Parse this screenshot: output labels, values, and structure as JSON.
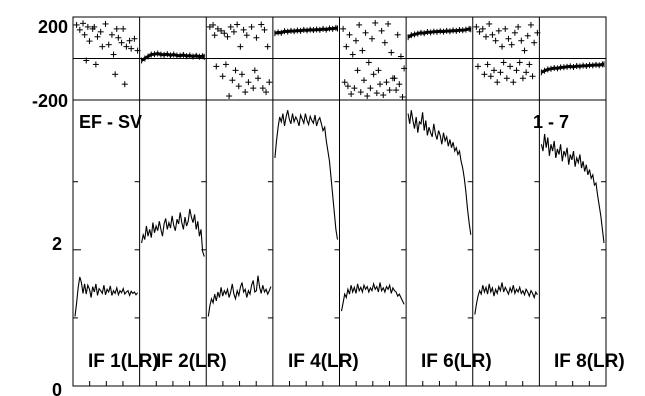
{
  "chart_data": {
    "type": "line",
    "title": "EF - SV",
    "range_label": "1 - 7",
    "phase_axis": {
      "tick_labels": [
        "200",
        "-200"
      ],
      "ylim": [
        -200,
        200
      ]
    },
    "amp_axis": {
      "tick_labels": [
        "2",
        "0"
      ],
      "ylim": [
        0,
        4.2
      ]
    },
    "x_axis_range": [
      1,
      40
    ],
    "panels": [
      {
        "label": "IF 1(LR)",
        "phase_type": "scatter",
        "phase": [
          [
            2,
            170
          ],
          [
            4,
            145
          ],
          [
            6,
            178
          ],
          [
            7,
            120
          ],
          [
            9,
            160
          ],
          [
            10,
            88
          ],
          [
            12,
            150
          ],
          [
            13,
            160
          ],
          [
            15,
            110
          ],
          [
            17,
            135
          ],
          [
            18,
            60
          ],
          [
            20,
            175
          ],
          [
            22,
            70
          ],
          [
            24,
            120
          ],
          [
            25,
            20
          ],
          [
            27,
            150
          ],
          [
            28,
            105
          ],
          [
            30,
            80
          ],
          [
            31,
            150
          ],
          [
            33,
            60
          ],
          [
            35,
            90
          ],
          [
            36,
            50
          ],
          [
            38,
            100
          ],
          [
            40,
            40
          ],
          [
            14,
            -30
          ],
          [
            26,
            -80
          ],
          [
            32,
            -130
          ],
          [
            8,
            -10
          ]
        ],
        "amplitude": [
          1.02,
          1.22,
          1.45,
          1.6,
          1.52,
          1.36,
          1.5,
          1.35,
          1.48,
          1.42,
          1.3,
          1.46,
          1.38,
          1.5,
          1.33,
          1.43,
          1.4,
          1.36,
          1.48,
          1.34,
          1.42,
          1.38,
          1.47,
          1.33,
          1.4,
          1.36,
          1.44,
          1.34,
          1.4,
          1.37,
          1.43,
          1.35,
          1.38,
          1.4,
          1.33,
          1.39,
          1.36,
          1.38,
          1.34,
          1.37
        ]
      },
      {
        "label": "IF 2(LR)",
        "phase_type": "line",
        "phase": [
          [
            1,
            -10
          ],
          [
            3,
            0
          ],
          [
            5,
            10
          ],
          [
            7,
            20
          ],
          [
            9,
            22
          ],
          [
            11,
            25
          ],
          [
            13,
            20
          ],
          [
            15,
            18
          ],
          [
            17,
            22
          ],
          [
            19,
            16
          ],
          [
            21,
            20
          ],
          [
            23,
            15
          ],
          [
            25,
            14
          ],
          [
            27,
            18
          ],
          [
            29,
            12
          ],
          [
            31,
            15
          ],
          [
            33,
            10
          ],
          [
            35,
            14
          ],
          [
            37,
            9
          ],
          [
            39,
            12
          ],
          [
            40,
            8
          ]
        ],
        "amplitude": [
          2.1,
          2.22,
          2.15,
          2.35,
          2.2,
          2.3,
          2.18,
          2.4,
          2.25,
          2.35,
          2.28,
          2.42,
          2.3,
          2.2,
          2.38,
          2.46,
          2.3,
          2.4,
          2.32,
          2.5,
          2.36,
          2.28,
          2.45,
          2.38,
          2.55,
          2.4,
          2.3,
          2.48,
          2.35,
          2.42,
          2.6,
          2.48,
          2.4,
          2.52,
          2.3,
          2.42,
          2.2,
          2.3,
          1.98,
          1.9
        ]
      },
      {
        "label": "",
        "phase_type": "scatter",
        "phase": [
          [
            2,
            160
          ],
          [
            4,
            170
          ],
          [
            5,
            118
          ],
          [
            7,
            150
          ],
          [
            9,
            140
          ],
          [
            11,
            128
          ],
          [
            13,
            110
          ],
          [
            15,
            160
          ],
          [
            17,
            135
          ],
          [
            19,
            172
          ],
          [
            21,
            60
          ],
          [
            23,
            145
          ],
          [
            25,
            118
          ],
          [
            28,
            160
          ],
          [
            31,
            105
          ],
          [
            34,
            172
          ],
          [
            36,
            145
          ],
          [
            38,
            60
          ],
          [
            6,
            -40
          ],
          [
            10,
            -90
          ],
          [
            12,
            -30
          ],
          [
            16,
            -110
          ],
          [
            18,
            -60
          ],
          [
            20,
            -140
          ],
          [
            22,
            -80
          ],
          [
            24,
            -170
          ],
          [
            26,
            -120
          ],
          [
            29,
            -150
          ],
          [
            30,
            -60
          ],
          [
            32,
            -100
          ],
          [
            35,
            -150
          ],
          [
            37,
            -170
          ],
          [
            39,
            -120
          ],
          [
            14,
            -190
          ]
        ],
        "amplitude": [
          1.02,
          1.18,
          1.28,
          1.22,
          1.35,
          1.25,
          1.38,
          1.3,
          1.45,
          1.32,
          1.4,
          1.35,
          1.42,
          1.3,
          1.38,
          1.5,
          1.35,
          1.28,
          1.4,
          1.33,
          1.45,
          1.52,
          1.38,
          1.42,
          1.3,
          1.4,
          1.35,
          1.48,
          1.55,
          1.38,
          1.4,
          1.62,
          1.45,
          1.36,
          1.48,
          1.38,
          1.42,
          1.35,
          1.4,
          1.46
        ]
      },
      {
        "label": "IF 4(LR)",
        "phase_type": "line",
        "phase": [
          [
            1,
            128
          ],
          [
            3,
            132
          ],
          [
            5,
            130
          ],
          [
            7,
            138
          ],
          [
            9,
            136
          ],
          [
            11,
            140
          ],
          [
            13,
            138
          ],
          [
            15,
            142
          ],
          [
            17,
            140
          ],
          [
            19,
            145
          ],
          [
            21,
            142
          ],
          [
            23,
            146
          ],
          [
            25,
            144
          ],
          [
            27,
            147
          ],
          [
            29,
            145
          ],
          [
            31,
            150
          ],
          [
            33,
            146
          ],
          [
            35,
            152
          ],
          [
            37,
            150
          ],
          [
            39,
            155
          ],
          [
            40,
            152
          ]
        ],
        "amplitude": [
          3.35,
          3.6,
          3.8,
          3.95,
          3.88,
          4.0,
          3.82,
          3.95,
          4.05,
          3.92,
          3.85,
          4.0,
          3.88,
          3.95,
          3.9,
          3.82,
          3.98,
          3.92,
          3.86,
          4.0,
          3.9,
          3.84,
          3.96,
          3.9,
          3.86,
          3.98,
          3.82,
          3.9,
          3.94,
          3.85,
          3.75,
          3.8,
          3.6,
          3.45,
          3.3,
          3.05,
          2.8,
          2.55,
          2.3,
          2.15
        ]
      },
      {
        "label": "",
        "phase_type": "scatter",
        "phase": [
          [
            2,
            150
          ],
          [
            4,
            60
          ],
          [
            6,
            120
          ],
          [
            8,
            20
          ],
          [
            10,
            90
          ],
          [
            12,
            170
          ],
          [
            14,
            40
          ],
          [
            16,
            130
          ],
          [
            18,
            -20
          ],
          [
            20,
            100
          ],
          [
            22,
            180
          ],
          [
            24,
            -60
          ],
          [
            26,
            140
          ],
          [
            28,
            80
          ],
          [
            30,
            175
          ],
          [
            32,
            30
          ],
          [
            34,
            -100
          ],
          [
            36,
            120
          ],
          [
            38,
            10
          ],
          [
            40,
            -50
          ],
          [
            3,
            -120
          ],
          [
            7,
            -180
          ],
          [
            9,
            -150
          ],
          [
            11,
            -60
          ],
          [
            13,
            -170
          ],
          [
            15,
            -110
          ],
          [
            17,
            -190
          ],
          [
            19,
            -150
          ],
          [
            21,
            -80
          ],
          [
            23,
            -175
          ],
          [
            25,
            -130
          ],
          [
            27,
            -185
          ],
          [
            29,
            -120
          ],
          [
            31,
            -160
          ],
          [
            33,
            -100
          ],
          [
            35,
            -160
          ],
          [
            37,
            -130
          ],
          [
            39,
            -195
          ],
          [
            5,
            -140
          ]
        ],
        "amplitude": [
          1.1,
          1.22,
          1.35,
          1.3,
          1.42,
          1.35,
          1.48,
          1.38,
          1.45,
          1.36,
          1.5,
          1.4,
          1.45,
          1.38,
          1.48,
          1.42,
          1.46,
          1.38,
          1.44,
          1.4,
          1.5,
          1.42,
          1.46,
          1.38,
          1.52,
          1.4,
          1.44,
          1.38,
          1.46,
          1.42,
          1.48,
          1.36,
          1.44,
          1.4,
          1.38,
          1.32,
          1.35,
          1.3,
          1.25,
          1.2
        ]
      },
      {
        "label": "IF 6(LR)",
        "phase_type": "line",
        "phase": [
          [
            1,
            108
          ],
          [
            3,
            118
          ],
          [
            5,
            122
          ],
          [
            7,
            126
          ],
          [
            9,
            130
          ],
          [
            11,
            128
          ],
          [
            13,
            134
          ],
          [
            15,
            132
          ],
          [
            17,
            136
          ],
          [
            19,
            135
          ],
          [
            21,
            138
          ],
          [
            23,
            136
          ],
          [
            25,
            140
          ],
          [
            27,
            138
          ],
          [
            29,
            142
          ],
          [
            31,
            140
          ],
          [
            33,
            144
          ],
          [
            35,
            143
          ],
          [
            37,
            146
          ],
          [
            39,
            150
          ],
          [
            40,
            148
          ]
        ],
        "amplitude": [
          4.0,
          3.85,
          4.05,
          3.9,
          3.78,
          3.95,
          3.72,
          3.88,
          3.85,
          4.02,
          3.75,
          3.9,
          3.68,
          3.8,
          3.72,
          3.66,
          3.85,
          3.7,
          3.62,
          3.75,
          3.68,
          3.55,
          3.72,
          3.6,
          3.66,
          3.52,
          3.62,
          3.5,
          3.58,
          3.45,
          3.5,
          3.4,
          3.45,
          3.3,
          3.2,
          3.05,
          2.85,
          2.6,
          2.4,
          2.22
        ]
      },
      {
        "label": "",
        "phase_type": "scatter",
        "phase": [
          [
            2,
            160
          ],
          [
            4,
            135
          ],
          [
            6,
            150
          ],
          [
            8,
            110
          ],
          [
            10,
            175
          ],
          [
            12,
            120
          ],
          [
            14,
            90
          ],
          [
            16,
            140
          ],
          [
            18,
            60
          ],
          [
            20,
            150
          ],
          [
            22,
            100
          ],
          [
            24,
            70
          ],
          [
            26,
            130
          ],
          [
            28,
            160
          ],
          [
            30,
            90
          ],
          [
            32,
            40
          ],
          [
            34,
            115
          ],
          [
            36,
            170
          ],
          [
            38,
            80
          ],
          [
            40,
            130
          ],
          [
            3,
            -40
          ],
          [
            7,
            -80
          ],
          [
            9,
            -30
          ],
          [
            11,
            -90
          ],
          [
            13,
            -60
          ],
          [
            15,
            -120
          ],
          [
            17,
            -70
          ],
          [
            19,
            -20
          ],
          [
            21,
            -100
          ],
          [
            23,
            -40
          ],
          [
            25,
            -120
          ],
          [
            27,
            -60
          ],
          [
            29,
            -20
          ],
          [
            31,
            -100
          ],
          [
            33,
            -70
          ],
          [
            35,
            -30
          ],
          [
            37,
            -90
          ]
        ],
        "amplitude": [
          1.05,
          1.2,
          1.32,
          1.4,
          1.35,
          1.48,
          1.38,
          1.45,
          1.35,
          1.5,
          1.38,
          1.44,
          1.32,
          1.42,
          1.36,
          1.46,
          1.4,
          1.52,
          1.38,
          1.45,
          1.4,
          1.35,
          1.44,
          1.38,
          1.48,
          1.36,
          1.42,
          1.38,
          1.45,
          1.36,
          1.4,
          1.34,
          1.42,
          1.38,
          1.32,
          1.4,
          1.36,
          1.3,
          1.38,
          1.34
        ]
      },
      {
        "label": "IF 8(LR)",
        "phase_type": "line",
        "phase": [
          [
            1,
            -70
          ],
          [
            3,
            -62
          ],
          [
            5,
            -55
          ],
          [
            7,
            -52
          ],
          [
            9,
            -48
          ],
          [
            11,
            -50
          ],
          [
            13,
            -45
          ],
          [
            15,
            -44
          ],
          [
            17,
            -42
          ],
          [
            19,
            -40
          ],
          [
            21,
            -43
          ],
          [
            23,
            -38
          ],
          [
            25,
            -40
          ],
          [
            27,
            -36
          ],
          [
            29,
            -38
          ],
          [
            31,
            -34
          ],
          [
            33,
            -35
          ],
          [
            35,
            -32
          ],
          [
            37,
            -34
          ],
          [
            39,
            -30
          ],
          [
            40,
            -29
          ]
        ],
        "amplitude": [
          3.55,
          3.45,
          3.7,
          3.5,
          3.65,
          3.38,
          3.55,
          3.45,
          3.6,
          3.35,
          3.48,
          3.4,
          3.55,
          3.3,
          3.45,
          3.38,
          3.5,
          3.25,
          3.4,
          3.32,
          3.45,
          3.22,
          3.35,
          3.28,
          3.4,
          3.2,
          3.3,
          3.15,
          3.25,
          3.1,
          3.18,
          3.05,
          3.1,
          2.95,
          2.98,
          2.8,
          2.65,
          2.5,
          2.3,
          2.1
        ]
      }
    ],
    "amp_labels": [
      {
        "text": "IF 1(LR)"
      },
      {
        "text": "IF 2(LR)"
      },
      {
        "text": "IF 4(LR)"
      },
      {
        "text": "IF 6(LR)"
      },
      {
        "text": "IF 8(LR)"
      }
    ]
  }
}
